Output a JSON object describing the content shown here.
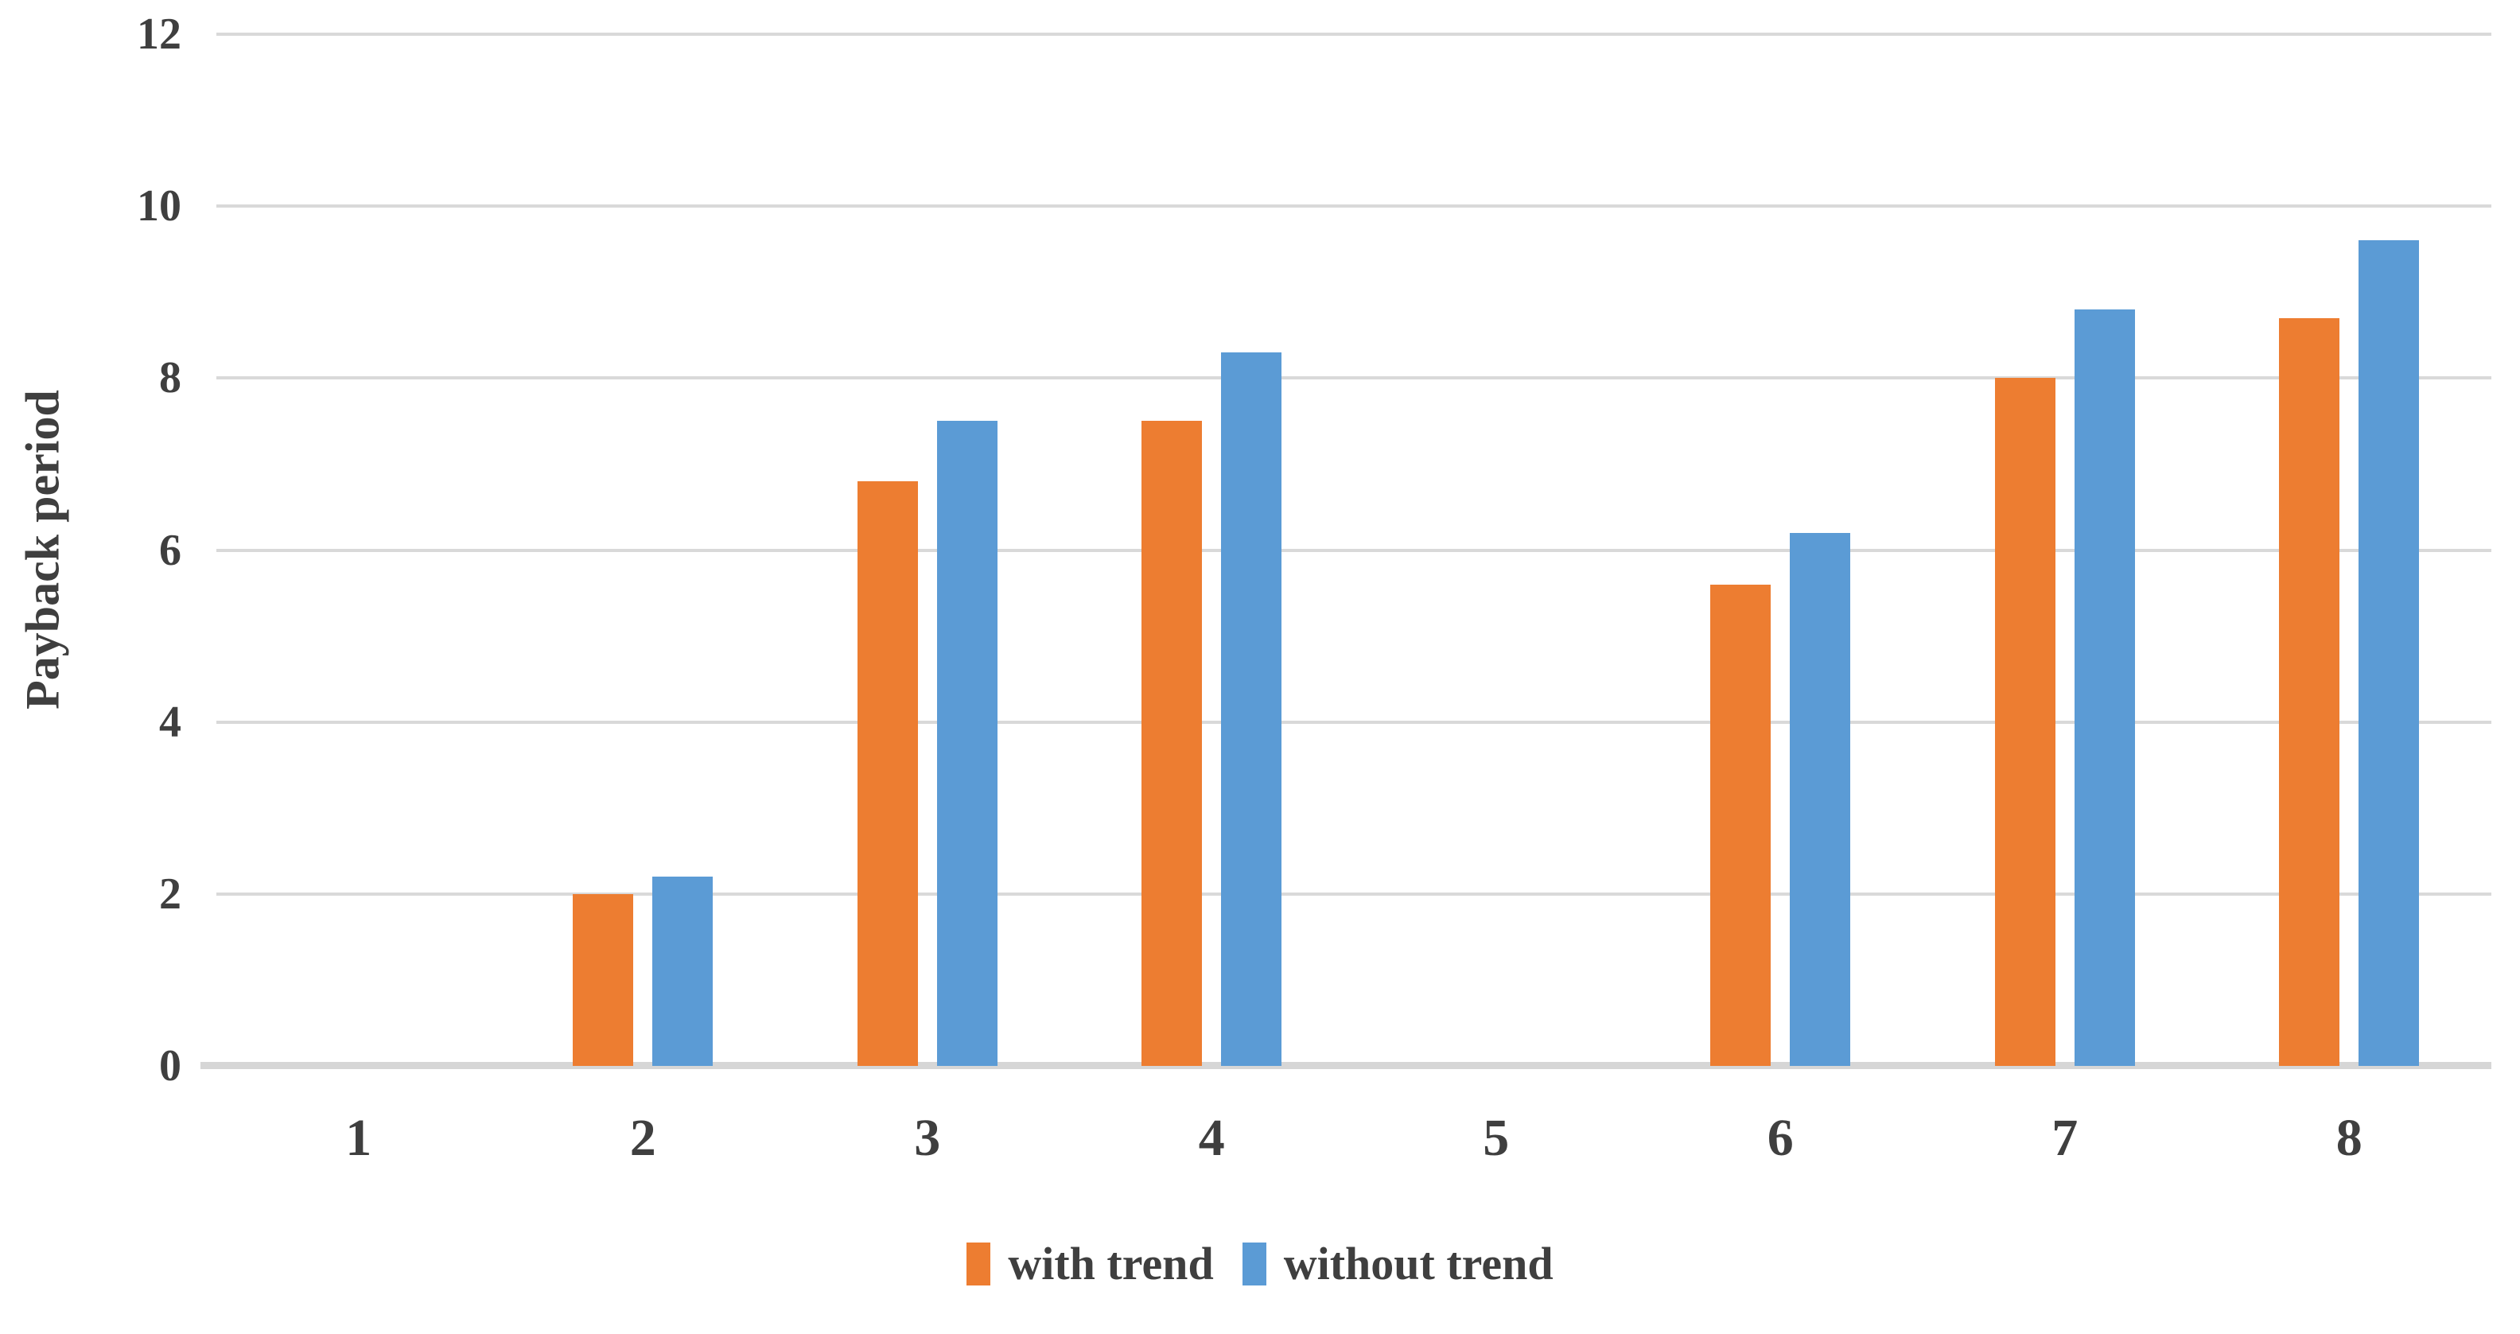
{
  "chart_data": {
    "type": "bar",
    "categories": [
      "1",
      "2",
      "3",
      "4",
      "5",
      "6",
      "7",
      "8"
    ],
    "series": [
      {
        "name": "with trend",
        "color": "#ED7D31",
        "values": [
          0,
          2.0,
          6.8,
          7.5,
          0,
          5.6,
          8.0,
          8.7
        ]
      },
      {
        "name": "without trend",
        "color": "#5B9BD5",
        "values": [
          0,
          2.2,
          7.5,
          8.3,
          0,
          6.2,
          8.8,
          9.6
        ]
      }
    ],
    "title": "",
    "xlabel": "",
    "ylabel": "Payback period",
    "ylim": [
      0,
      12
    ],
    "ytick_step": 2,
    "yticks": [
      0,
      2,
      4,
      6,
      8,
      10,
      12
    ],
    "grid": true,
    "legend_position": "bottom",
    "colors": {
      "gridline": "#D9D9D9",
      "axis_line": "#D6D6D6",
      "text": "#3F3F3F"
    }
  }
}
